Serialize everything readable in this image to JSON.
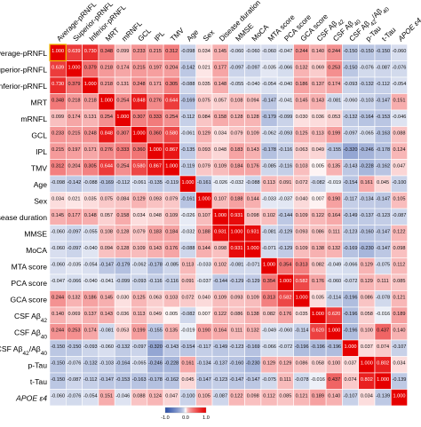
{
  "chart_data": {
    "type": "heatmap",
    "title": "",
    "variables": [
      "Average-pRNFL",
      "Superior-pRNFL",
      "Inferior-pRNFL",
      "MRT",
      "mRNFL",
      "GCL",
      "IPL",
      "TMV",
      "Age",
      "Sex",
      "Disease duration",
      "MMSE",
      "MoCA",
      "MTA score",
      "PCA score",
      "GCA score",
      "CSF Aβ42",
      "CSF Aβ40",
      "CSF Aβ42/Aβ40",
      "p-Tau",
      "t-Tau",
      "APOE ε4"
    ],
    "column_labels": [
      "Average-pRNFL",
      "Superior-pRNFL",
      "Inferior-pRNFL",
      "MRT",
      "mRNFL",
      "GCL",
      "IPL",
      "TMV",
      "Age",
      "Sex",
      "Disease duration",
      "MMSE",
      "MoCA",
      "MTA score",
      "PCA score",
      "GCA score",
      "CSF Aβ42",
      "CSF Aβ40",
      "CSF Aβ42/Aβ40",
      "p-Tau",
      "t-Tau",
      "APOE ε4"
    ],
    "r": [
      [
        1.0,
        0.639,
        0.73,
        0.348,
        0.099,
        0.233,
        0.215,
        0.312,
        -0.098,
        0.034,
        0.145,
        -0.06,
        -0.06,
        -0.06,
        -0.047,
        0.244,
        0.14,
        0.244,
        -0.15,
        -0.15,
        -0.15,
        -0.06
      ],
      [
        0.639,
        1.0,
        0.379,
        0.218,
        0.174,
        0.215,
        0.197,
        0.204,
        -0.142,
        0.021,
        0.177,
        -0.097,
        -0.097,
        -0.035,
        -0.066,
        0.132,
        0.069,
        0.253,
        -0.15,
        -0.076,
        -0.087,
        -0.076
      ],
      [
        0.73,
        0.379,
        1.0,
        0.218,
        0.131,
        0.248,
        0.171,
        0.305,
        -0.088,
        0.035,
        0.148,
        -0.055,
        -0.04,
        -0.054,
        -0.04,
        0.186,
        0.137,
        0.174,
        -0.093,
        -0.132,
        -0.112,
        -0.054
      ],
      [
        0.348,
        0.218,
        0.218,
        1.0,
        0.254,
        0.848,
        0.276,
        0.644,
        -0.169,
        0.075,
        0.057,
        0.108,
        0.094,
        -0.147,
        -0.041,
        0.145,
        0.143,
        -0.081,
        -0.06,
        -0.103,
        -0.147,
        0.151
      ],
      [
        0.099,
        0.174,
        0.131,
        0.254,
        1.0,
        0.307,
        0.333,
        0.254,
        -0.112,
        0.084,
        0.158,
        0.128,
        0.128,
        -0.179,
        -0.099,
        0.03,
        0.036,
        0.053,
        -0.132,
        -0.164,
        -0.153,
        -0.046
      ],
      [
        0.233,
        0.215,
        0.248,
        0.848,
        0.307,
        1.0,
        0.36,
        0.58,
        -0.061,
        0.129,
        0.034,
        0.079,
        0.109,
        -0.062,
        -0.093,
        0.125,
        0.113,
        0.199,
        -0.097,
        -0.065,
        -0.163,
        0.088
      ],
      [
        0.215,
        0.197,
        0.171,
        0.276,
        0.333,
        0.36,
        1.0,
        0.867,
        -0.135,
        0.093,
        0.048,
        0.183,
        0.143,
        -0.178,
        -0.116,
        0.063,
        0.049,
        -0.155,
        -0.32,
        -0.246,
        -0.178,
        0.124
      ],
      [
        0.312,
        0.204,
        0.305,
        0.644,
        0.254,
        0.58,
        0.867,
        1.0,
        -0.119,
        0.079,
        0.109,
        0.184,
        0.176,
        -0.085,
        -0.116,
        0.103,
        0.005,
        0.135,
        -0.143,
        -0.228,
        -0.162,
        0.047
      ],
      [
        -0.098,
        -0.142,
        -0.088,
        -0.169,
        -0.112,
        -0.061,
        -0.135,
        -0.119,
        1.0,
        -0.161,
        -0.026,
        -0.032,
        -0.088,
        0.113,
        0.091,
        0.072,
        -0.082,
        -0.019,
        -0.154,
        0.161,
        0.045,
        -0.1
      ],
      [
        0.034,
        0.021,
        0.035,
        0.075,
        0.084,
        0.129,
        0.093,
        0.079,
        -0.161,
        1.0,
        0.107,
        0.188,
        0.144,
        -0.033,
        -0.037,
        0.04,
        0.007,
        0.19,
        -0.117,
        -0.134,
        -0.147,
        0.105
      ],
      [
        0.145,
        0.177,
        0.148,
        0.057,
        0.158,
        0.034,
        0.048,
        0.109,
        -0.026,
        0.107,
        1.0,
        0.931,
        0.098,
        0.102,
        -0.144,
        0.109,
        0.122,
        0.164,
        -0.149,
        -0.137,
        -0.123,
        -0.087
      ],
      [
        -0.06,
        -0.097,
        -0.055,
        0.108,
        0.128,
        0.079,
        0.183,
        0.184,
        -0.032,
        0.188,
        0.931,
        1.0,
        0.931,
        -0.081,
        -0.129,
        0.093,
        0.086,
        0.111,
        -0.123,
        -0.16,
        -0.147,
        0.122
      ],
      [
        -0.06,
        -0.097,
        -0.04,
        0.094,
        0.128,
        0.109,
        0.143,
        0.176,
        -0.088,
        0.144,
        0.098,
        0.931,
        1.0,
        -0.071,
        -0.129,
        0.109,
        0.138,
        0.132,
        -0.169,
        -0.23,
        -0.147,
        0.098
      ],
      [
        -0.06,
        -0.035,
        -0.054,
        -0.147,
        -0.179,
        -0.062,
        -0.178,
        -0.085,
        0.113,
        -0.033,
        0.102,
        -0.081,
        -0.071,
        1.0,
        0.354,
        0.313,
        0.082,
        -0.049,
        -0.066,
        0.129,
        -0.075,
        0.112
      ],
      [
        -0.047,
        -0.066,
        -0.04,
        -0.041,
        -0.099,
        -0.093,
        -0.116,
        -0.116,
        0.091,
        -0.037,
        -0.144,
        -0.129,
        -0.129,
        0.354,
        1.0,
        0.582,
        0.176,
        -0.06,
        -0.072,
        0.129,
        0.111,
        0.085
      ],
      [
        0.244,
        0.132,
        0.186,
        0.145,
        0.03,
        0.125,
        0.063,
        0.103,
        0.072,
        0.04,
        0.109,
        0.093,
        0.109,
        0.313,
        0.582,
        1.0,
        0.035,
        -0.114,
        -0.196,
        0.086,
        -0.078,
        0.121
      ],
      [
        0.14,
        0.069,
        0.137,
        0.143,
        0.036,
        0.113,
        0.049,
        0.005,
        -0.082,
        0.007,
        0.122,
        0.086,
        0.138,
        0.082,
        0.176,
        0.035,
        1.0,
        0.62,
        -0.196,
        0.058,
        -0.016,
        0.189
      ],
      [
        0.244,
        0.253,
        0.174,
        -0.081,
        0.053,
        0.199,
        -0.155,
        0.135,
        -0.019,
        0.19,
        0.164,
        0.111,
        0.132,
        -0.049,
        -0.06,
        -0.114,
        0.62,
        1.0,
        -0.196,
        0.1,
        0.437,
        0.14
      ],
      [
        -0.15,
        -0.15,
        -0.093,
        -0.06,
        -0.132,
        -0.097,
        -0.32,
        -0.143,
        -0.154,
        -0.117,
        -0.149,
        -0.123,
        -0.169,
        -0.066,
        -0.072,
        -0.196,
        -0.196,
        -0.196,
        1.0,
        0.037,
        0.074,
        -0.107
      ],
      [
        -0.15,
        -0.076,
        -0.132,
        -0.103,
        -0.164,
        -0.065,
        -0.246,
        -0.228,
        0.161,
        -0.134,
        -0.137,
        -0.16,
        -0.23,
        0.129,
        0.129,
        0.086,
        0.058,
        0.1,
        0.037,
        1.0,
        0.802,
        0.034
      ],
      [
        -0.15,
        -0.087,
        -0.112,
        -0.147,
        -0.153,
        -0.163,
        -0.178,
        -0.162,
        0.045,
        -0.147,
        -0.123,
        -0.147,
        -0.147,
        -0.075,
        0.111,
        -0.078,
        -0.016,
        0.437,
        0.074,
        0.802,
        1.0,
        -0.139
      ],
      [
        -0.06,
        -0.076,
        -0.054,
        0.151,
        -0.046,
        0.088,
        0.124,
        0.047,
        -0.1,
        0.105,
        -0.087,
        0.122,
        0.098,
        0.112,
        0.085,
        0.121,
        0.189,
        0.14,
        -0.107,
        0.034,
        -0.139,
        1.0
      ]
    ],
    "p_note": "small p-values printed under each correlation",
    "colorbar": {
      "min": -1.0,
      "max": 1.0,
      "tick_labels": [
        "-1.0",
        "0.0",
        "1.0"
      ],
      "colors": {
        "negative": "#2b4fa8",
        "neutral": "#ffffff",
        "positive": "#e60000"
      }
    }
  }
}
